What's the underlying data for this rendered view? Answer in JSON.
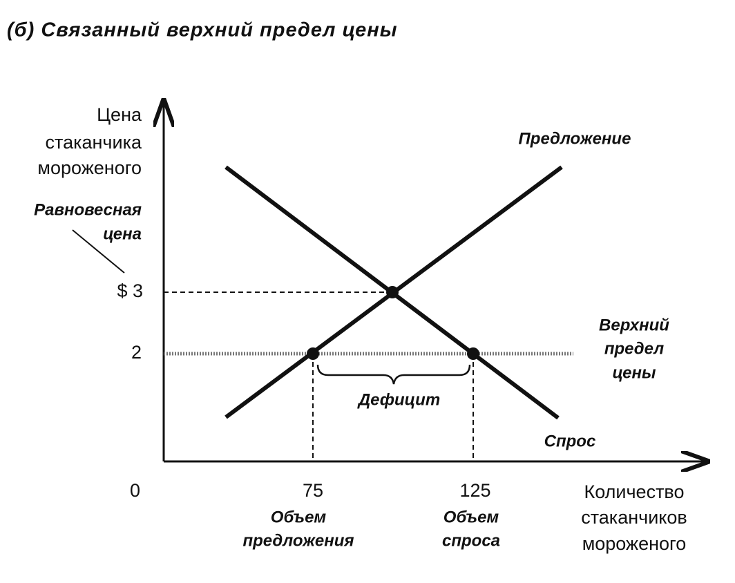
{
  "title": "(б) Связанный верхний предел цены",
  "y_axis": {
    "label": [
      "Цена",
      "стаканчика",
      "мороженого"
    ],
    "ticks": [
      "$ 3",
      "2"
    ],
    "origin": "0"
  },
  "x_axis": {
    "label": [
      "Количество",
      "стаканчиков",
      "мороженого"
    ],
    "ticks": [
      "75",
      "125"
    ],
    "tick_notes": [
      [
        "Объем",
        "предложения"
      ],
      [
        "Объем",
        "спроса"
      ]
    ]
  },
  "annotations": {
    "equilibrium_price": [
      "Равновесная",
      "цена"
    ],
    "supply": "Предложение",
    "demand": "Спрос",
    "price_ceiling": [
      "Верхний",
      "предел",
      "цены"
    ],
    "shortage": "Дефицит"
  }
}
